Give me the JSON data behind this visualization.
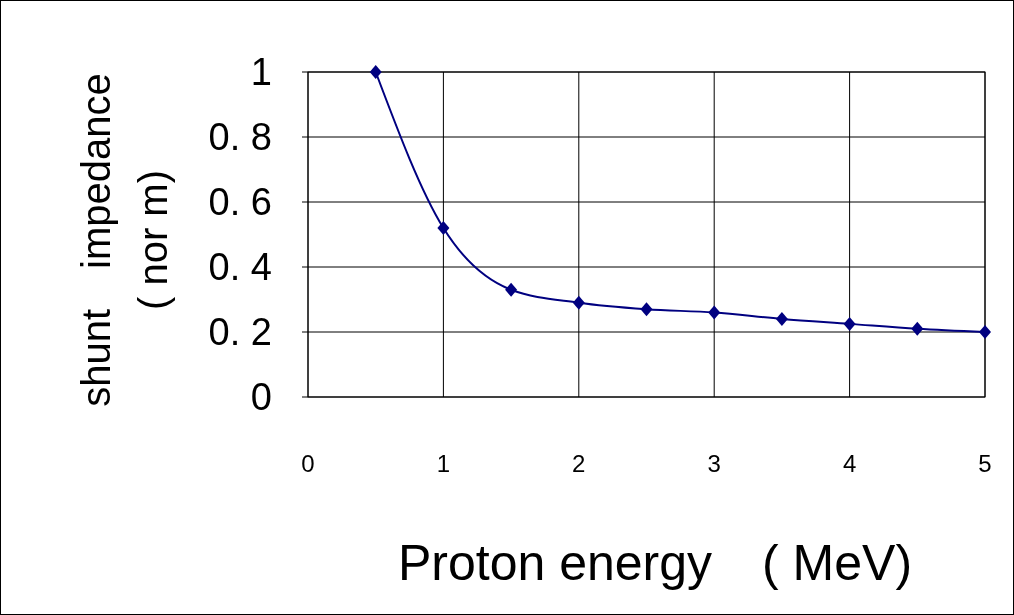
{
  "chart_data": {
    "type": "line",
    "xlabel": "Proton energy　( MeV)",
    "ylabel": "shunt　impedance\n( nor m)",
    "x": [
      0.5,
      1,
      1.5,
      2,
      2.5,
      3,
      3.5,
      4,
      4.5,
      5
    ],
    "series": [
      {
        "color": "#000080",
        "values": [
          1.0,
          0.52,
          0.33,
          0.29,
          0.27,
          0.26,
          0.24,
          0.225,
          0.21,
          0.2
        ]
      }
    ],
    "xlim": [
      0,
      5
    ],
    "xticks": [
      0,
      1,
      2,
      3,
      4,
      5
    ],
    "ylim": [
      0,
      1
    ],
    "yticks": [
      0,
      {
        "value": 0.2,
        "label": "0. 2"
      },
      {
        "value": 0.4,
        "label": "0. 4"
      },
      {
        "value": 0.6,
        "label": "0. 6"
      },
      {
        "value": 0.8,
        "label": "0. 8"
      },
      1
    ],
    "grid": true,
    "marker": "diamond",
    "line_style": "solid"
  }
}
